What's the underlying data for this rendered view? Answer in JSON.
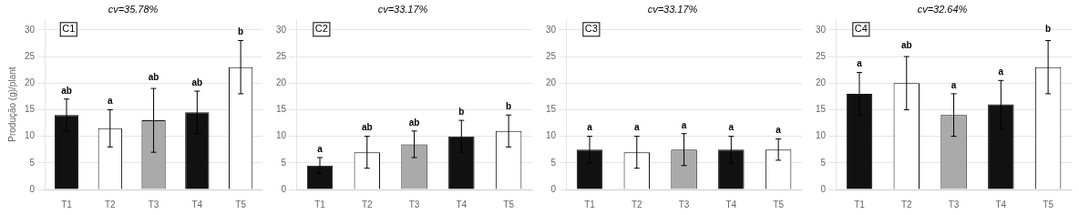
{
  "chart_data": [
    {
      "type": "bar",
      "title": "C1",
      "subtitle": "cv=35.78%",
      "y_label": "Produção (g)/plant",
      "categories": [
        "T1",
        "T2",
        "T3",
        "T4",
        "T5"
      ],
      "values": [
        14.0,
        11.5,
        13.0,
        14.5,
        23.0
      ],
      "errors": [
        3.0,
        3.5,
        6.0,
        4.0,
        5.0
      ],
      "colors": [
        "#111111",
        "#ffffff",
        "#aaaaaa",
        "#111111",
        "#ffffff"
      ],
      "annotations": [
        {
          "x": "T1",
          "y": 17.5,
          "text": "ab"
        },
        {
          "x": "T2",
          "y": 15.5,
          "text": "a"
        },
        {
          "x": "T3",
          "y": 20.0,
          "text": "ab"
        },
        {
          "x": "T4",
          "y": 19.0,
          "text": "ab"
        },
        {
          "x": "T5",
          "y": 28.5,
          "text": "b"
        }
      ],
      "ylim": [
        0,
        32
      ],
      "yticks": [
        0,
        5,
        10,
        15,
        20,
        25,
        30
      ],
      "grid": true
    },
    {
      "type": "bar",
      "title": "C2",
      "subtitle": "cv=33.17%",
      "categories": [
        "T1",
        "T2",
        "T3",
        "T4",
        "T5"
      ],
      "values": [
        4.5,
        7.0,
        8.5,
        10.0,
        11.0
      ],
      "errors": [
        1.5,
        3.0,
        2.5,
        3.0,
        3.0
      ],
      "colors": [
        "#111111",
        "#ffffff",
        "#aaaaaa",
        "#111111",
        "#ffffff"
      ],
      "annotations": [
        {
          "x": "T1",
          "y": 6.5,
          "text": "a"
        },
        {
          "x": "T2",
          "y": 10.5,
          "text": "ab"
        },
        {
          "x": "T3",
          "y": 11.5,
          "text": "ab"
        },
        {
          "x": "T4",
          "y": 13.5,
          "text": "b"
        },
        {
          "x": "T5",
          "y": 14.5,
          "text": "b"
        }
      ],
      "ylim": [
        0,
        32
      ],
      "yticks": [
        0,
        5,
        10,
        15,
        20,
        25,
        30
      ],
      "grid": true
    },
    {
      "type": "bar",
      "title": "C3",
      "subtitle": "cv=33.17%",
      "categories": [
        "T1",
        "T2",
        "T3",
        "T4",
        "T5"
      ],
      "values": [
        7.5,
        7.0,
        7.5,
        7.5,
        7.5
      ],
      "errors": [
        2.5,
        3.0,
        3.0,
        2.5,
        2.0
      ],
      "colors": [
        "#111111",
        "#ffffff",
        "#aaaaaa",
        "#111111",
        "#ffffff"
      ],
      "annotations": [
        {
          "x": "T1",
          "y": 10.5,
          "text": "a"
        },
        {
          "x": "T2",
          "y": 10.5,
          "text": "a"
        },
        {
          "x": "T3",
          "y": 11.0,
          "text": "a"
        },
        {
          "x": "T4",
          "y": 10.5,
          "text": "a"
        },
        {
          "x": "T5",
          "y": 10.0,
          "text": "a"
        }
      ],
      "ylim": [
        0,
        32
      ],
      "yticks": [
        0,
        5,
        10,
        15,
        20,
        25,
        30
      ],
      "grid": true
    },
    {
      "type": "bar",
      "title": "C4",
      "subtitle": "cv=32.64%",
      "categories": [
        "T1",
        "T2",
        "T3",
        "T4",
        "T5"
      ],
      "values": [
        18.0,
        20.0,
        14.0,
        16.0,
        23.0
      ],
      "errors": [
        4.0,
        5.0,
        4.0,
        4.5,
        5.0
      ],
      "colors": [
        "#111111",
        "#ffffff",
        "#aaaaaa",
        "#111111",
        "#ffffff"
      ],
      "annotations": [
        {
          "x": "T1",
          "y": 22.5,
          "text": "a"
        },
        {
          "x": "T2",
          "y": 26.0,
          "text": "ab"
        },
        {
          "x": "T3",
          "y": 18.5,
          "text": "a"
        },
        {
          "x": "T4",
          "y": 21.0,
          "text": "a"
        },
        {
          "x": "T5",
          "y": 29.0,
          "text": "b"
        }
      ],
      "ylim": [
        0,
        32
      ],
      "yticks": [
        0,
        5,
        10,
        15,
        20,
        25,
        30
      ],
      "grid": true
    }
  ]
}
